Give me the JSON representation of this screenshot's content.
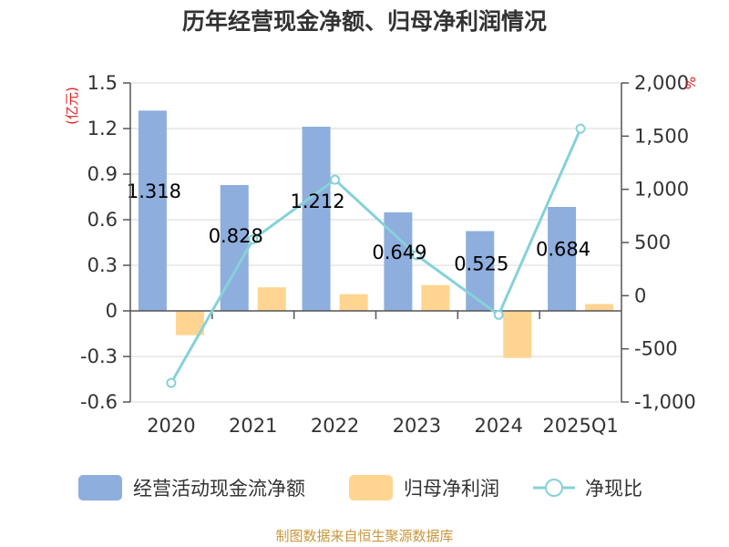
{
  "chart_data": {
    "type": "bar",
    "title": "历年经营现金净额、归母净利润情况",
    "categories": [
      "2020",
      "2021",
      "2022",
      "2023",
      "2024",
      "2025Q1"
    ],
    "series": [
      {
        "name": "经营活动现金流净额",
        "type": "bar",
        "axis": "left",
        "color": "#8eaedd",
        "values": [
          1.318,
          0.828,
          1.212,
          0.649,
          0.525,
          0.684
        ],
        "labels": [
          "1.318",
          "0.828",
          "1.212",
          "0.649",
          "0.525",
          "0.684"
        ]
      },
      {
        "name": "归母净利润",
        "type": "bar",
        "axis": "left",
        "color": "#ffd591",
        "values": [
          -0.16,
          0.155,
          0.11,
          0.17,
          -0.31,
          0.045
        ]
      },
      {
        "name": "净现比",
        "type": "line",
        "axis": "right",
        "color": "#86d1d9",
        "values": [
          -820,
          530,
          1090,
          380,
          -180,
          1570
        ]
      }
    ],
    "y_left": {
      "unit": "(亿元)",
      "min": -0.6,
      "max": 1.5,
      "ticks": [
        "-0.6",
        "-0.3",
        "0",
        "0.3",
        "0.6",
        "0.9",
        "1.2",
        "1.5"
      ]
    },
    "y_right": {
      "unit": "%",
      "min": -1000,
      "max": 2000,
      "ticks": [
        "-1,000",
        "-500",
        "0",
        "500",
        "1,000",
        "1,500",
        "2,000"
      ]
    },
    "grid": true,
    "legend_position": "bottom",
    "source": "制图数据来自恒生聚源数据库"
  }
}
